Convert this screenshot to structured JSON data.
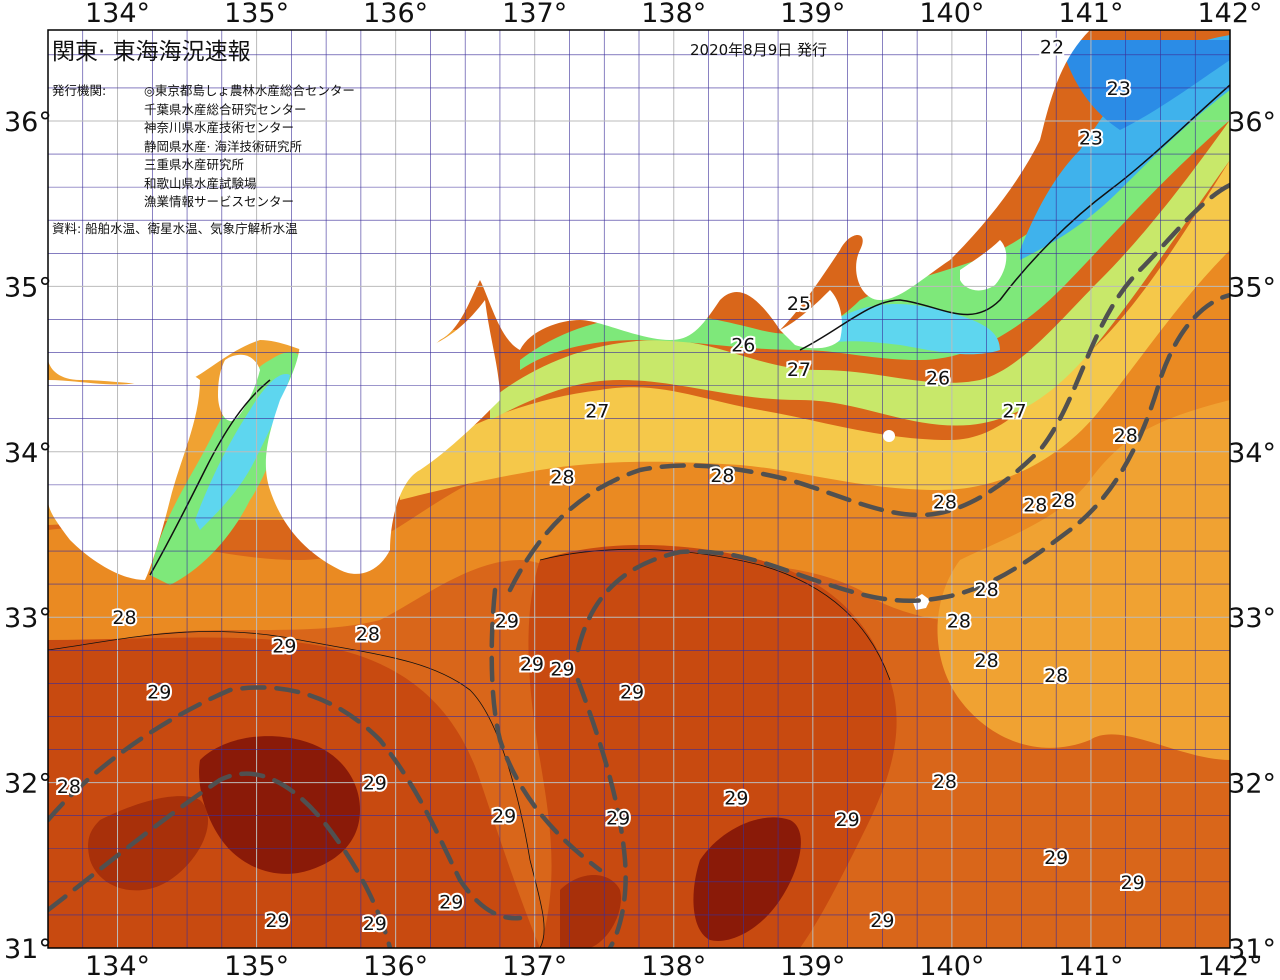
{
  "header": {
    "title": "関東· 東海海況速報",
    "issue_date": "2020年8月9日 発行",
    "issuer_label": "発行機関:",
    "issuers": [
      "◎東京都島しょ農林水産総合センター",
      "千葉県水産総合研究センター",
      "神奈川県水産技術センター",
      "静岡県水産· 海洋技術研究所",
      "三重県水産研究所",
      "和歌山県水産試験場",
      "漁業情報サービスセンター"
    ],
    "source": "資料: 船舶水温、衛星水温、気象庁解析水温"
  },
  "axes": {
    "lon_labels": [
      "134°",
      "135°",
      "136°",
      "137°",
      "138°",
      "139°",
      "140°",
      "141°",
      "142°"
    ],
    "lat_labels": [
      "36°",
      "35°",
      "34°",
      "33°",
      "32°",
      "31°"
    ],
    "lon_range": [
      133.5,
      142
    ],
    "lat_range": [
      31,
      36.55
    ]
  },
  "legend_colors": {
    "t22": "#2b8ce6",
    "t23": "#3fb2ec",
    "t24": "#5ed6ef",
    "t25": "#7ee87a",
    "t26": "#c8e86a",
    "t26_5": "#f4e86a",
    "t27": "#f5c84a",
    "t27_5": "#f0a232",
    "t28": "#ea8a22",
    "t28_5": "#d9661a",
    "t29": "#c84a10",
    "t29_5": "#a8300a",
    "t30": "#8a1a08",
    "land": "#ffffff",
    "grid": "#3b2e9a",
    "dashed_line": "#505050"
  },
  "contour_labels": [
    {
      "text": "22",
      "lon": 140.72,
      "lat": 36.45
    },
    {
      "text": "23",
      "lon": 141.2,
      "lat": 36.2
    },
    {
      "text": "23",
      "lon": 141.0,
      "lat": 35.9
    },
    {
      "text": "25",
      "lon": 138.9,
      "lat": 34.9
    },
    {
      "text": "26",
      "lon": 138.5,
      "lat": 34.65
    },
    {
      "text": "27",
      "lon": 138.9,
      "lat": 34.5
    },
    {
      "text": "26",
      "lon": 139.9,
      "lat": 34.45
    },
    {
      "text": "27",
      "lon": 137.45,
      "lat": 34.25
    },
    {
      "text": "27",
      "lon": 140.45,
      "lat": 34.25
    },
    {
      "text": "28",
      "lon": 141.25,
      "lat": 34.1
    },
    {
      "text": "28",
      "lon": 137.2,
      "lat": 33.85
    },
    {
      "text": "28",
      "lon": 138.35,
      "lat": 33.86
    },
    {
      "text": "28",
      "lon": 139.95,
      "lat": 33.7
    },
    {
      "text": "28",
      "lon": 140.8,
      "lat": 33.71
    },
    {
      "text": "28",
      "lon": 140.6,
      "lat": 33.68
    },
    {
      "text": "28",
      "lon": 140.25,
      "lat": 33.17
    },
    {
      "text": "28",
      "lon": 140.05,
      "lat": 32.98
    },
    {
      "text": "28",
      "lon": 134.05,
      "lat": 33.0
    },
    {
      "text": "28",
      "lon": 135.8,
      "lat": 32.9
    },
    {
      "text": "28",
      "lon": 140.25,
      "lat": 32.74
    },
    {
      "text": "28",
      "lon": 140.75,
      "lat": 32.65
    },
    {
      "text": "28",
      "lon": 133.65,
      "lat": 31.98
    },
    {
      "text": "28",
      "lon": 139.95,
      "lat": 32.01
    },
    {
      "text": "29",
      "lon": 136.8,
      "lat": 32.98
    },
    {
      "text": "29",
      "lon": 135.2,
      "lat": 32.83
    },
    {
      "text": "29",
      "lon": 136.98,
      "lat": 32.72
    },
    {
      "text": "29",
      "lon": 137.2,
      "lat": 32.69
    },
    {
      "text": "29",
      "lon": 137.7,
      "lat": 32.55
    },
    {
      "text": "29",
      "lon": 134.3,
      "lat": 32.55
    },
    {
      "text": "29",
      "lon": 135.85,
      "lat": 32.0
    },
    {
      "text": "29",
      "lon": 138.45,
      "lat": 31.91
    },
    {
      "text": "29",
      "lon": 136.78,
      "lat": 31.8
    },
    {
      "text": "29",
      "lon": 137.6,
      "lat": 31.79
    },
    {
      "text": "29",
      "lon": 139.25,
      "lat": 31.78
    },
    {
      "text": "29",
      "lon": 140.75,
      "lat": 31.55
    },
    {
      "text": "29",
      "lon": 141.3,
      "lat": 31.4
    },
    {
      "text": "29",
      "lon": 136.4,
      "lat": 31.28
    },
    {
      "text": "29",
      "lon": 135.15,
      "lat": 31.17
    },
    {
      "text": "29",
      "lon": 135.85,
      "lat": 31.15
    },
    {
      "text": "29",
      "lon": 139.5,
      "lat": 31.17
    }
  ]
}
